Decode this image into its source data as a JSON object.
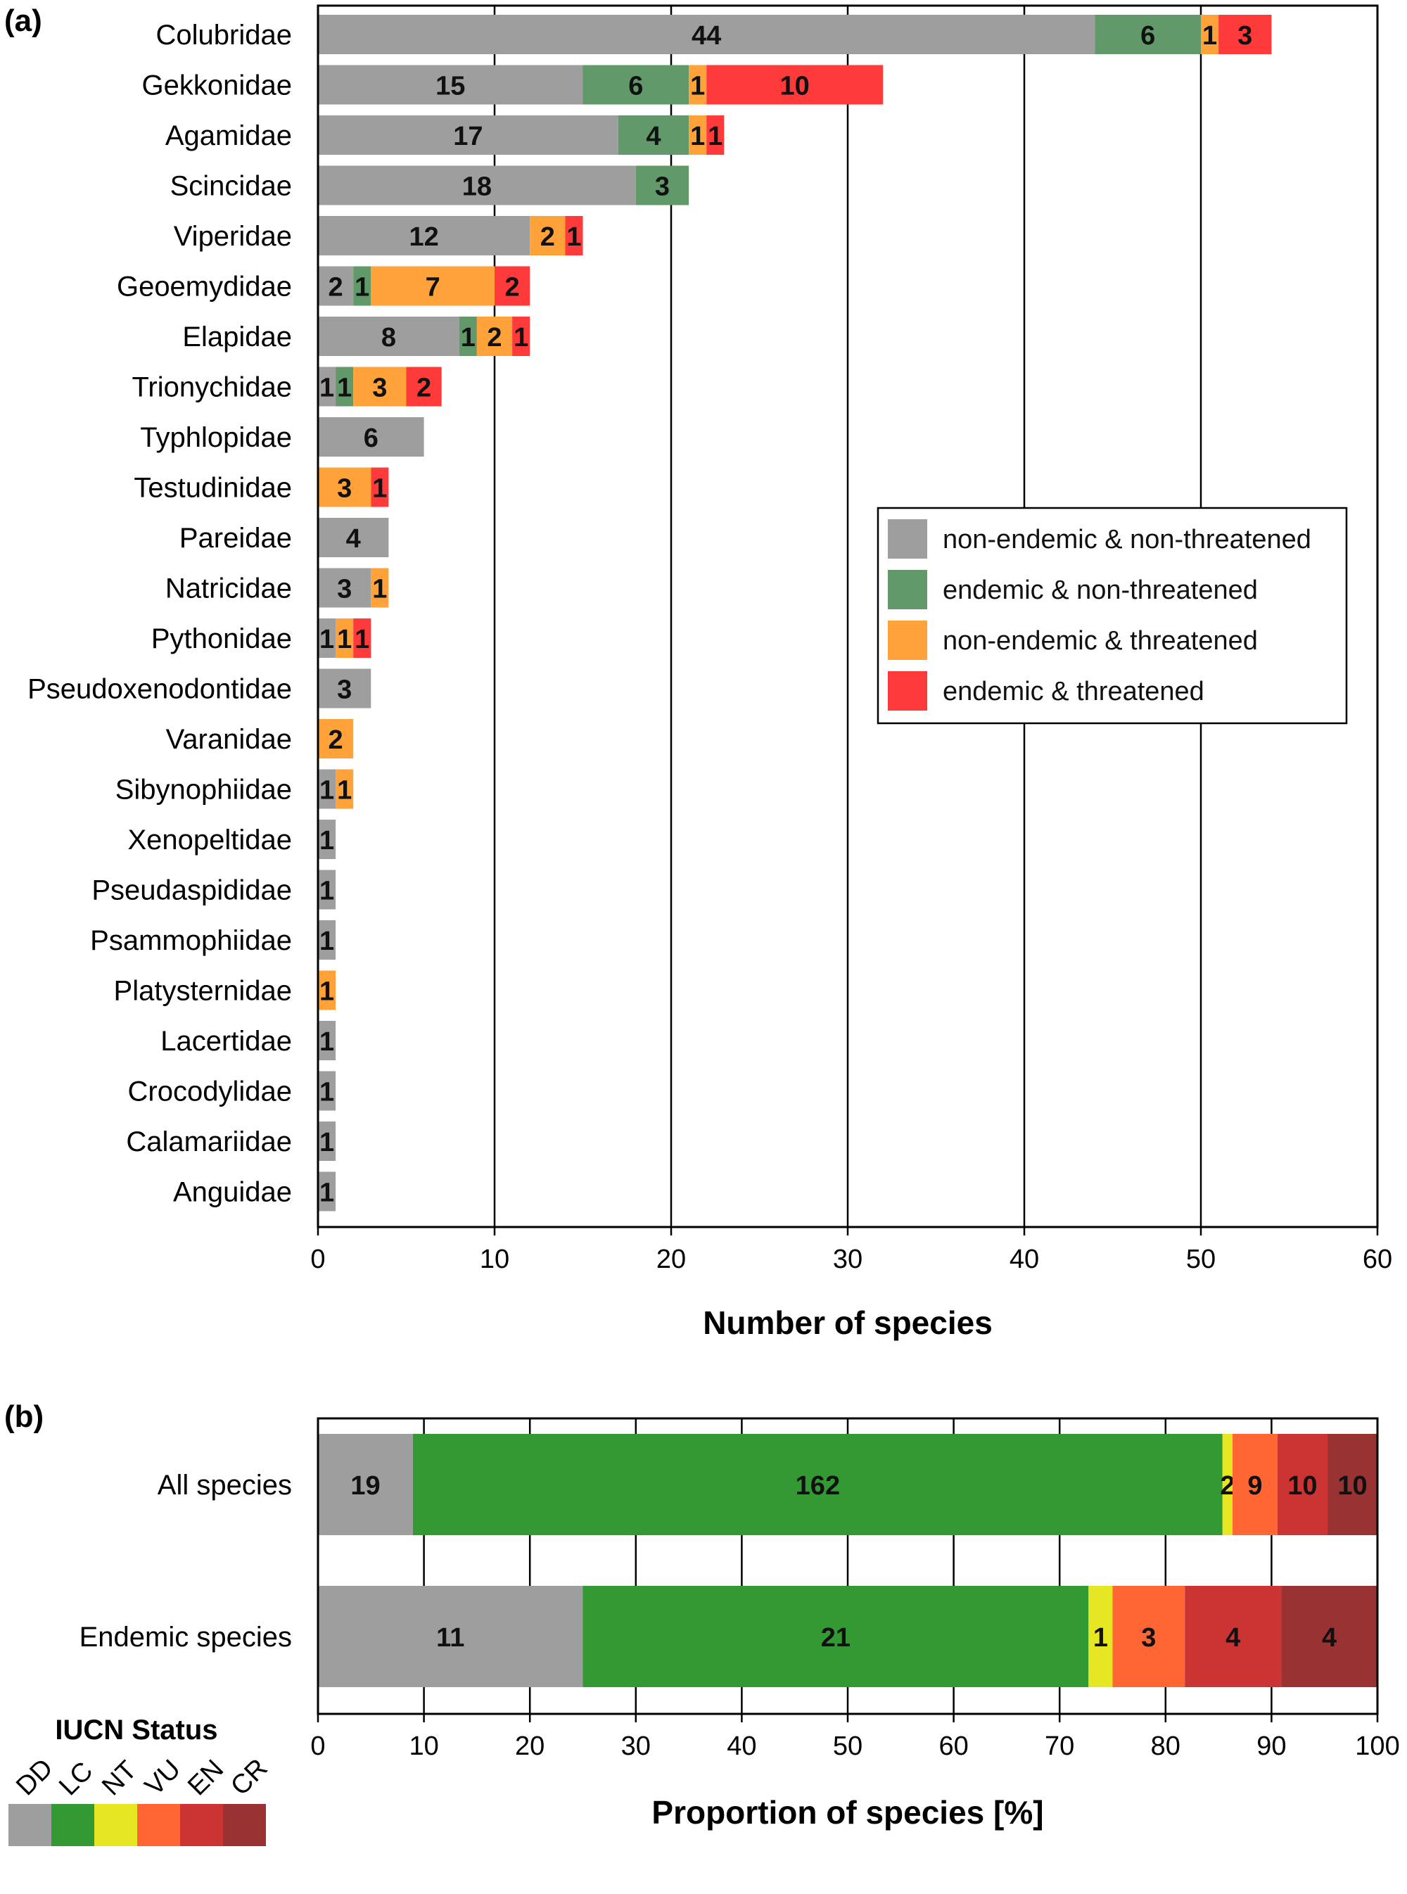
{
  "chart_data": [
    {
      "panel_label": "(a)",
      "type": "bar",
      "orientation": "horizontal",
      "stacked": true,
      "xlabel": "Number of species",
      "xlim": [
        0,
        60
      ],
      "xticks": [
        0,
        10,
        20,
        30,
        40,
        50,
        60
      ],
      "grid": "vertical lines",
      "legend_position": "right-center",
      "categories": [
        "Colubridae",
        "Gekkonidae",
        "Agamidae",
        "Scincidae",
        "Viperidae",
        "Geoemydidae",
        "Elapidae",
        "Trionychidae",
        "Typhlopidae",
        "Testudinidae",
        "Pareidae",
        "Natricidae",
        "Pythonidae",
        "Pseudoxenodontidae",
        "Varanidae",
        "Sibynophiidae",
        "Xenopeltidae",
        "Pseudaspididae",
        "Psammophiidae",
        "Platysternidae",
        "Lacertidae",
        "Crocodylidae",
        "Calamariidae",
        "Anguidae"
      ],
      "series": [
        {
          "name": "non-endemic & non-threatened",
          "color": "#9e9e9e",
          "values": [
            44,
            15,
            17,
            18,
            12,
            2,
            8,
            1,
            6,
            0,
            4,
            3,
            1,
            3,
            0,
            1,
            1,
            1,
            1,
            0,
            1,
            1,
            1,
            1
          ]
        },
        {
          "name": "endemic & non-threatened",
          "color": "#62996a",
          "values": [
            6,
            6,
            4,
            3,
            0,
            1,
            1,
            1,
            0,
            0,
            0,
            0,
            0,
            0,
            0,
            0,
            0,
            0,
            0,
            0,
            0,
            0,
            0,
            0
          ]
        },
        {
          "name": "non-endemic & threatened",
          "color": "#fea239",
          "values": [
            1,
            1,
            1,
            0,
            2,
            7,
            2,
            3,
            0,
            3,
            0,
            1,
            1,
            0,
            2,
            1,
            0,
            0,
            0,
            1,
            0,
            0,
            0,
            0
          ]
        },
        {
          "name": "endemic & threatened",
          "color": "#fe3a3a",
          "values": [
            3,
            10,
            1,
            0,
            1,
            2,
            1,
            2,
            0,
            1,
            0,
            0,
            1,
            0,
            0,
            0,
            0,
            0,
            0,
            0,
            0,
            0,
            0,
            0
          ]
        }
      ]
    },
    {
      "panel_label": "(b)",
      "type": "bar",
      "orientation": "horizontal",
      "stacked": true,
      "normalized": true,
      "xlabel": "Proportion of species [%]",
      "xlim": [
        0,
        100
      ],
      "xticks": [
        0,
        10,
        20,
        30,
        40,
        50,
        60,
        70,
        80,
        90,
        100
      ],
      "grid": "vertical lines",
      "categories": [
        "All species",
        "Endemic species"
      ],
      "legend_title": "IUCN Status",
      "legend_position": "bottom-left",
      "series": [
        {
          "name": "DD",
          "color": "#9e9e9e",
          "values": [
            19,
            11
          ]
        },
        {
          "name": "LC",
          "color": "#339933",
          "values": [
            162,
            21
          ]
        },
        {
          "name": "NT",
          "color": "#e6e622",
          "values": [
            2,
            1
          ]
        },
        {
          "name": "VU",
          "color": "#ff6633",
          "values": [
            9,
            3
          ]
        },
        {
          "name": "EN",
          "color": "#cc3333",
          "values": [
            10,
            4
          ]
        },
        {
          "name": "CR",
          "color": "#993333",
          "values": [
            10,
            4
          ]
        }
      ]
    }
  ]
}
